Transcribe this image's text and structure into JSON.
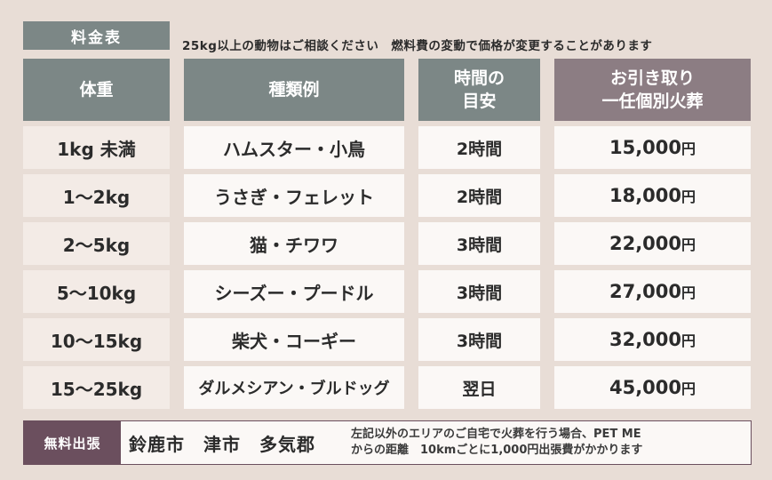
{
  "title": "料金表",
  "notice": "25kg以上の動物はご相談ください　燃料費の変動で価格が変更することがあります",
  "headers": {
    "weight": "体重",
    "type": "種類例",
    "time_line1": "時間の",
    "time_line2": "目安",
    "price_line1": "お引き取り",
    "price_line2": "一任個別火葬"
  },
  "rows": [
    {
      "weight": "1kg 未満",
      "type": "ハムスター・小鳥",
      "time": "2時間",
      "price": "15,000",
      "unit": "円"
    },
    {
      "weight": "1〜2kg",
      "type": "うさぎ・フェレット",
      "time": "2時間",
      "price": "18,000",
      "unit": "円"
    },
    {
      "weight": "2〜5kg",
      "type": "猫・チワワ",
      "time": "3時間",
      "price": "22,000",
      "unit": "円"
    },
    {
      "weight": "5〜10kg",
      "type": "シーズー・プードル",
      "time": "3時間",
      "price": "27,000",
      "unit": "円"
    },
    {
      "weight": "10〜15kg",
      "type": "柴犬・コーギー",
      "time": "3時間",
      "price": "32,000",
      "unit": "円"
    },
    {
      "weight": "15〜25kg",
      "type": "ダルメシアン・ブルドッグ",
      "time": "翌日",
      "price": "45,000",
      "unit": "円"
    }
  ],
  "footer": {
    "badge": "無料出張",
    "cities": "鈴鹿市　津市　多気郡",
    "note_line1": "左記以外のエリアのご自宅で火葬を行う場合、PET ME",
    "note_line2": "からの距離　10kmごとに1,000円出張費がかかります"
  },
  "colors": {
    "background": "#e8ddd6",
    "header_gray": "#7c8786",
    "header_mauve": "#8c7d83",
    "badge": "#6b4f5e"
  }
}
